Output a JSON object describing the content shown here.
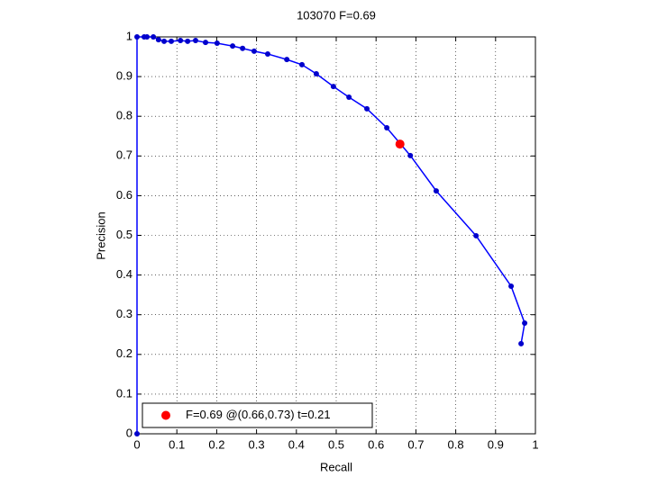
{
  "chart_data": {
    "type": "line",
    "title": "103070 F=0.69",
    "x_label": "Recall",
    "y_label": "Precision",
    "xlim": [
      0,
      1
    ],
    "ylim": [
      0,
      1
    ],
    "xticks": [
      0,
      0.1,
      0.2,
      0.3,
      0.4,
      0.5,
      0.6,
      0.7,
      0.8,
      0.9,
      1
    ],
    "yticks": [
      0,
      0.1,
      0.2,
      0.3,
      0.4,
      0.5,
      0.6,
      0.7,
      0.8,
      0.9,
      1
    ],
    "grid": true,
    "legend_location": "southwest",
    "series": [
      {
        "color": "#0000ff",
        "marker_color": "#0000cc",
        "x": [
          0,
          0,
          0.018,
          0.025,
          0.041,
          0.054,
          0.068,
          0.086,
          0.109,
          0.127,
          0.147,
          0.172,
          0.201,
          0.24,
          0.265,
          0.294,
          0.328,
          0.376,
          0.414,
          0.45,
          0.493,
          0.532,
          0.577,
          0.627,
          0.686,
          0.751,
          0.851,
          0.939,
          0.973,
          0.964
        ],
        "values": [
          0,
          1,
          1,
          1,
          1,
          0.993,
          0.989,
          0.989,
          0.991,
          0.989,
          0.991,
          0.986,
          0.984,
          0.977,
          0.971,
          0.964,
          0.957,
          0.943,
          0.93,
          0.907,
          0.875,
          0.848,
          0.819,
          0.771,
          0.701,
          0.612,
          0.499,
          0.372,
          0.279,
          0.227
        ]
      },
      {
        "name": "F=0.69 @(0.66,0.73) t=0.21",
        "color": "#ff0000",
        "x": [
          0.66
        ],
        "values": [
          0.73
        ]
      }
    ]
  }
}
